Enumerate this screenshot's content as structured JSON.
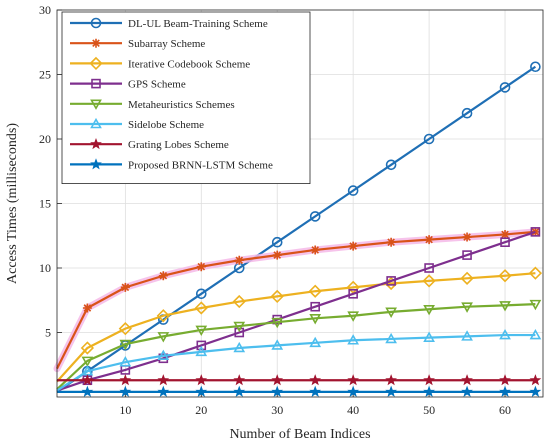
{
  "chart_data": {
    "type": "line",
    "title": "",
    "xlabel": "Number of Beam Indices",
    "ylabel": "Access Times (milliseconds)",
    "xlim": [
      1,
      65
    ],
    "ylim": [
      0,
      30
    ],
    "xticks": [
      10,
      20,
      30,
      40,
      50,
      60
    ],
    "yticks": [
      5,
      10,
      15,
      20,
      25,
      30
    ],
    "grid": true,
    "legend_position": "top-left",
    "series": [
      {
        "name": "DL-UL Beam-Training Scheme",
        "color": "#1f6fb5",
        "marker": "circle",
        "halo": "",
        "x": [
          1,
          5,
          10,
          15,
          20,
          25,
          30,
          35,
          40,
          45,
          50,
          55,
          60,
          64
        ],
        "y": [
          0.4,
          2.0,
          4.0,
          6.0,
          8.0,
          10.0,
          12.0,
          14.0,
          16.0,
          18.0,
          20.0,
          22.0,
          24.0,
          25.6
        ]
      },
      {
        "name": "Subarray Scheme",
        "color": "#d95319",
        "marker": "asterisk",
        "halo": "#f4b8e8",
        "x": [
          1,
          5,
          10,
          15,
          20,
          25,
          30,
          35,
          40,
          45,
          50,
          55,
          60,
          64
        ],
        "y": [
          2.2,
          6.9,
          8.5,
          9.4,
          10.1,
          10.6,
          11.0,
          11.4,
          11.7,
          12.0,
          12.2,
          12.4,
          12.6,
          12.8
        ]
      },
      {
        "name": "Iterative Codebook Scheme",
        "color": "#edb120",
        "marker": "diamond",
        "halo": "",
        "x": [
          1,
          5,
          10,
          15,
          20,
          25,
          30,
          35,
          40,
          45,
          50,
          55,
          60,
          64
        ],
        "y": [
          1.2,
          3.8,
          5.3,
          6.3,
          6.9,
          7.4,
          7.8,
          8.2,
          8.5,
          8.8,
          9.0,
          9.2,
          9.4,
          9.6
        ]
      },
      {
        "name": "GPS Scheme",
        "color": "#7e2f8e",
        "marker": "square",
        "halo": "",
        "x": [
          1,
          5,
          10,
          15,
          20,
          25,
          30,
          35,
          40,
          45,
          50,
          55,
          60,
          64
        ],
        "y": [
          0.5,
          1.3,
          2.1,
          3.0,
          4.0,
          5.0,
          6.0,
          7.0,
          8.0,
          9.0,
          10.0,
          11.0,
          12.0,
          12.8
        ]
      },
      {
        "name": "Metaheuristics Schemes",
        "color": "#77ac30",
        "marker": "triangle-down",
        "halo": "",
        "x": [
          1,
          5,
          10,
          15,
          20,
          25,
          30,
          35,
          40,
          45,
          50,
          55,
          60,
          64
        ],
        "y": [
          0.6,
          2.8,
          4.1,
          4.7,
          5.2,
          5.5,
          5.8,
          6.1,
          6.3,
          6.6,
          6.8,
          7.0,
          7.1,
          7.2
        ]
      },
      {
        "name": "Sidelobe Scheme",
        "color": "#4dbeee",
        "marker": "triangle-up",
        "halo": "",
        "x": [
          1,
          5,
          10,
          15,
          20,
          25,
          30,
          35,
          40,
          45,
          50,
          55,
          60,
          64
        ],
        "y": [
          0.5,
          2.0,
          2.7,
          3.2,
          3.5,
          3.8,
          4.0,
          4.2,
          4.4,
          4.5,
          4.6,
          4.7,
          4.8,
          4.8
        ]
      },
      {
        "name": "Grating Lobes Scheme",
        "color": "#a2142f",
        "marker": "star",
        "halo": "",
        "x": [
          1,
          5,
          10,
          15,
          20,
          25,
          30,
          35,
          40,
          45,
          50,
          55,
          60,
          64
        ],
        "y": [
          1.3,
          1.3,
          1.3,
          1.3,
          1.3,
          1.3,
          1.3,
          1.3,
          1.3,
          1.3,
          1.3,
          1.3,
          1.3,
          1.3
        ]
      },
      {
        "name": "Proposed BRNN-LSTM Scheme",
        "color": "#0072bd",
        "marker": "star",
        "halo": "",
        "x": [
          1,
          5,
          10,
          15,
          20,
          25,
          30,
          35,
          40,
          45,
          50,
          55,
          60,
          64
        ],
        "y": [
          0.4,
          0.4,
          0.4,
          0.4,
          0.4,
          0.4,
          0.4,
          0.4,
          0.4,
          0.4,
          0.4,
          0.4,
          0.4,
          0.4
        ]
      }
    ]
  }
}
